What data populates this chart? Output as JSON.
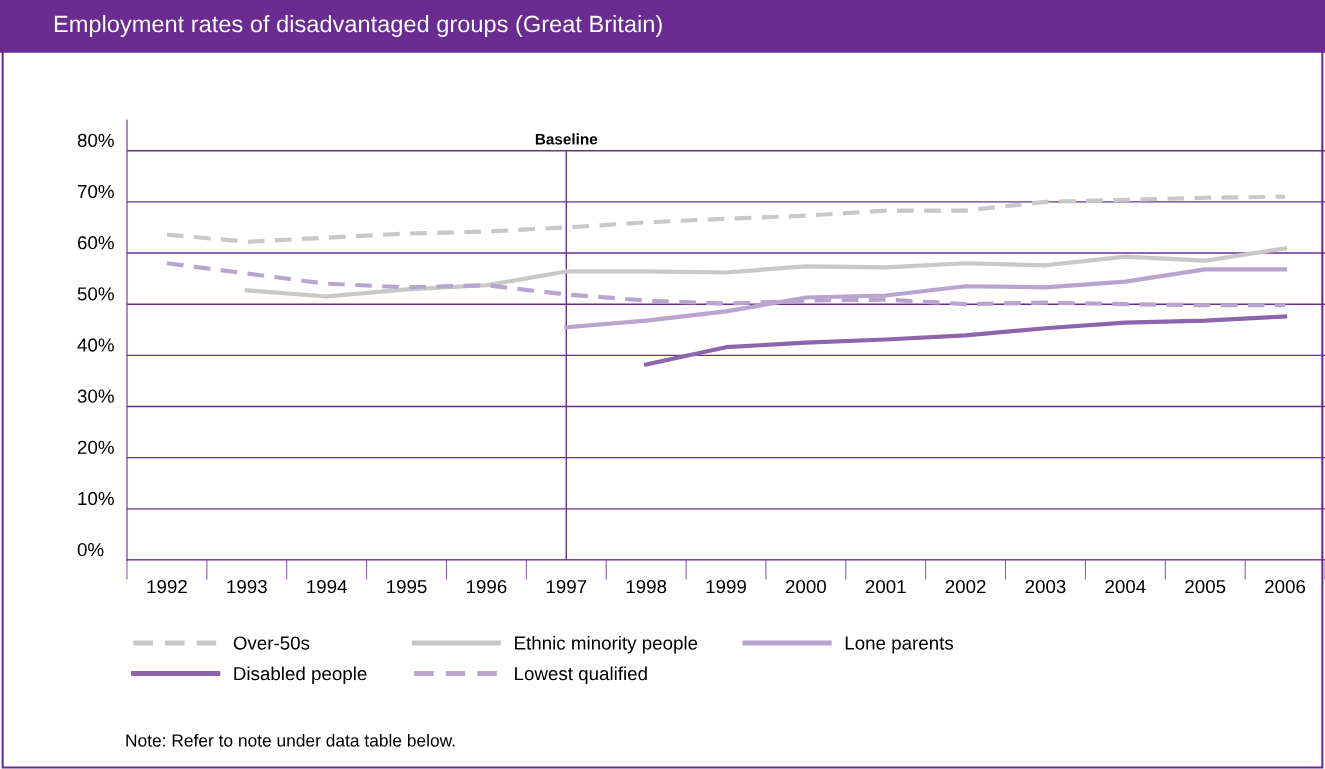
{
  "chart_data": {
    "type": "line",
    "title": "Employment rates of disadvantaged groups (Great Britain)",
    "categories": [
      "1992",
      "1993",
      "1994",
      "1995",
      "1996",
      "1997",
      "1998",
      "1999",
      "2000",
      "2001",
      "2002",
      "2003",
      "2004",
      "2005",
      "2006"
    ],
    "series": [
      {
        "name": "Over-50s",
        "color": "#c8c8c8",
        "line_style": "dashed",
        "values": [
          63.6,
          62.2,
          63.0,
          63.8,
          64.2,
          65.0,
          66.0,
          66.7,
          67.3,
          68.3,
          68.3,
          70.0,
          70.4,
          70.8,
          71.0
        ]
      },
      {
        "name": "Ethnic minority people",
        "color": "#c8c8c8",
        "line_style": "solid",
        "values": [
          null,
          52.7,
          51.5,
          52.9,
          53.7,
          56.4,
          56.4,
          56.2,
          57.4,
          57.2,
          58.0,
          57.6,
          59.3,
          58.5,
          60.9
        ]
      },
      {
        "name": "Lone parents",
        "color": "#b9a4cf",
        "line_style": "solid",
        "values": [
          null,
          null,
          null,
          null,
          null,
          45.5,
          46.8,
          48.6,
          51.3,
          51.7,
          53.5,
          53.3,
          54.4,
          56.8,
          56.8
        ]
      },
      {
        "name": "Disabled people",
        "color": "#8e65ad",
        "line_style": "solid",
        "values": [
          null,
          null,
          null,
          null,
          null,
          null,
          38.2,
          41.6,
          42.5,
          43.1,
          43.9,
          45.3,
          46.4,
          46.8,
          47.6
        ]
      },
      {
        "name": "Lowest qualified",
        "color": "#b9a4cf",
        "line_style": "dashed",
        "values": [
          58.0,
          56.0,
          54.0,
          53.3,
          53.7,
          51.9,
          50.7,
          50.1,
          50.7,
          50.9,
          50.0,
          50.3,
          50.0,
          49.8,
          49.8
        ]
      }
    ],
    "ylim": [
      0,
      86
    ],
    "yticks": [
      {
        "value": 0,
        "label": "0%"
      },
      {
        "value": 10,
        "label": "10%"
      },
      {
        "value": 20,
        "label": "20%"
      },
      {
        "value": 30,
        "label": "30%"
      },
      {
        "value": 40,
        "label": "40%"
      },
      {
        "value": 50,
        "label": "50%"
      },
      {
        "value": 60,
        "label": "60%"
      },
      {
        "value": 70,
        "label": "70%"
      },
      {
        "value": 80,
        "label": "80%"
      }
    ],
    "grid": "y",
    "legend": "bottom",
    "marker": "none",
    "ref_lines": [
      {
        "axis": "x",
        "value": "1997",
        "label": "Baseline",
        "color": "#6b2c91"
      }
    ],
    "annotations": [
      "Note: Refer to note under data table below."
    ]
  }
}
